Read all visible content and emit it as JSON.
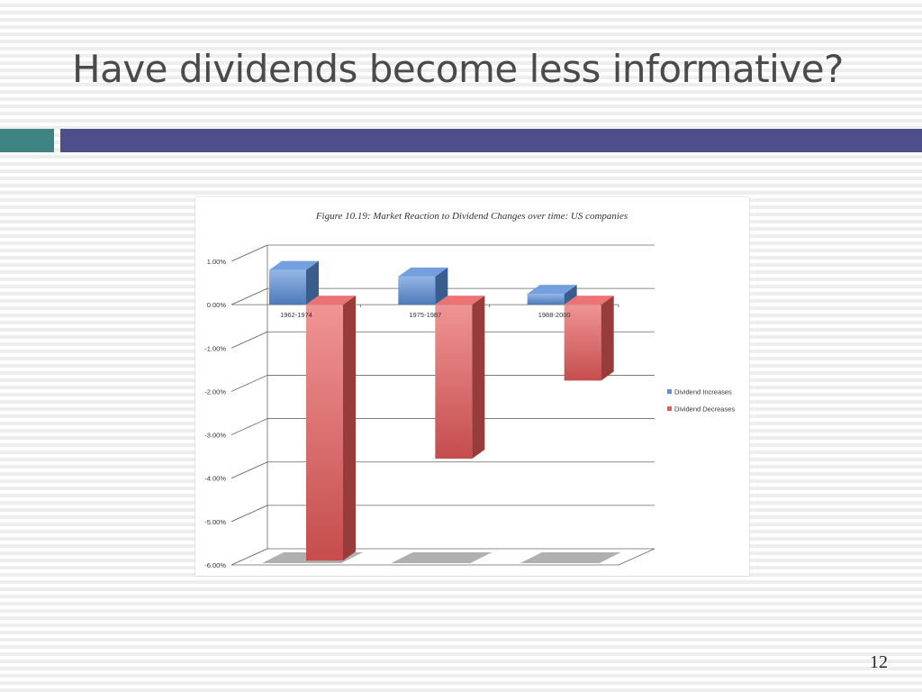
{
  "slide": {
    "title": "Have dividends become less informative?",
    "page_number": "12"
  },
  "colors": {
    "accent_teal": "#3e8482",
    "accent_navy": "#4e4f8a",
    "increase": "#5b8fd9",
    "decrease": "#e85a5a"
  },
  "chart_data": {
    "type": "bar",
    "title": "Figure 10.19: Market Reaction to Dividend Changes over time: US companies",
    "categories": [
      "1962-1974",
      "1975-1987",
      "1988-2000"
    ],
    "series": [
      {
        "name": "Dividend Increases",
        "values": [
          0.8,
          0.65,
          0.25
        ],
        "color": "#5b8fd9"
      },
      {
        "name": "Dividend Decreases",
        "values": [
          -5.9,
          -3.55,
          -1.75
        ],
        "color": "#e85a5a"
      }
    ],
    "yticks": [
      "1.00%",
      "0.00%",
      "-1.00%",
      "-2.00%",
      "-3.00%",
      "-4.00%",
      "-5.00%",
      "-6.00%"
    ],
    "ylim": [
      -6,
      1
    ],
    "grid": true,
    "legend_position": "right"
  }
}
